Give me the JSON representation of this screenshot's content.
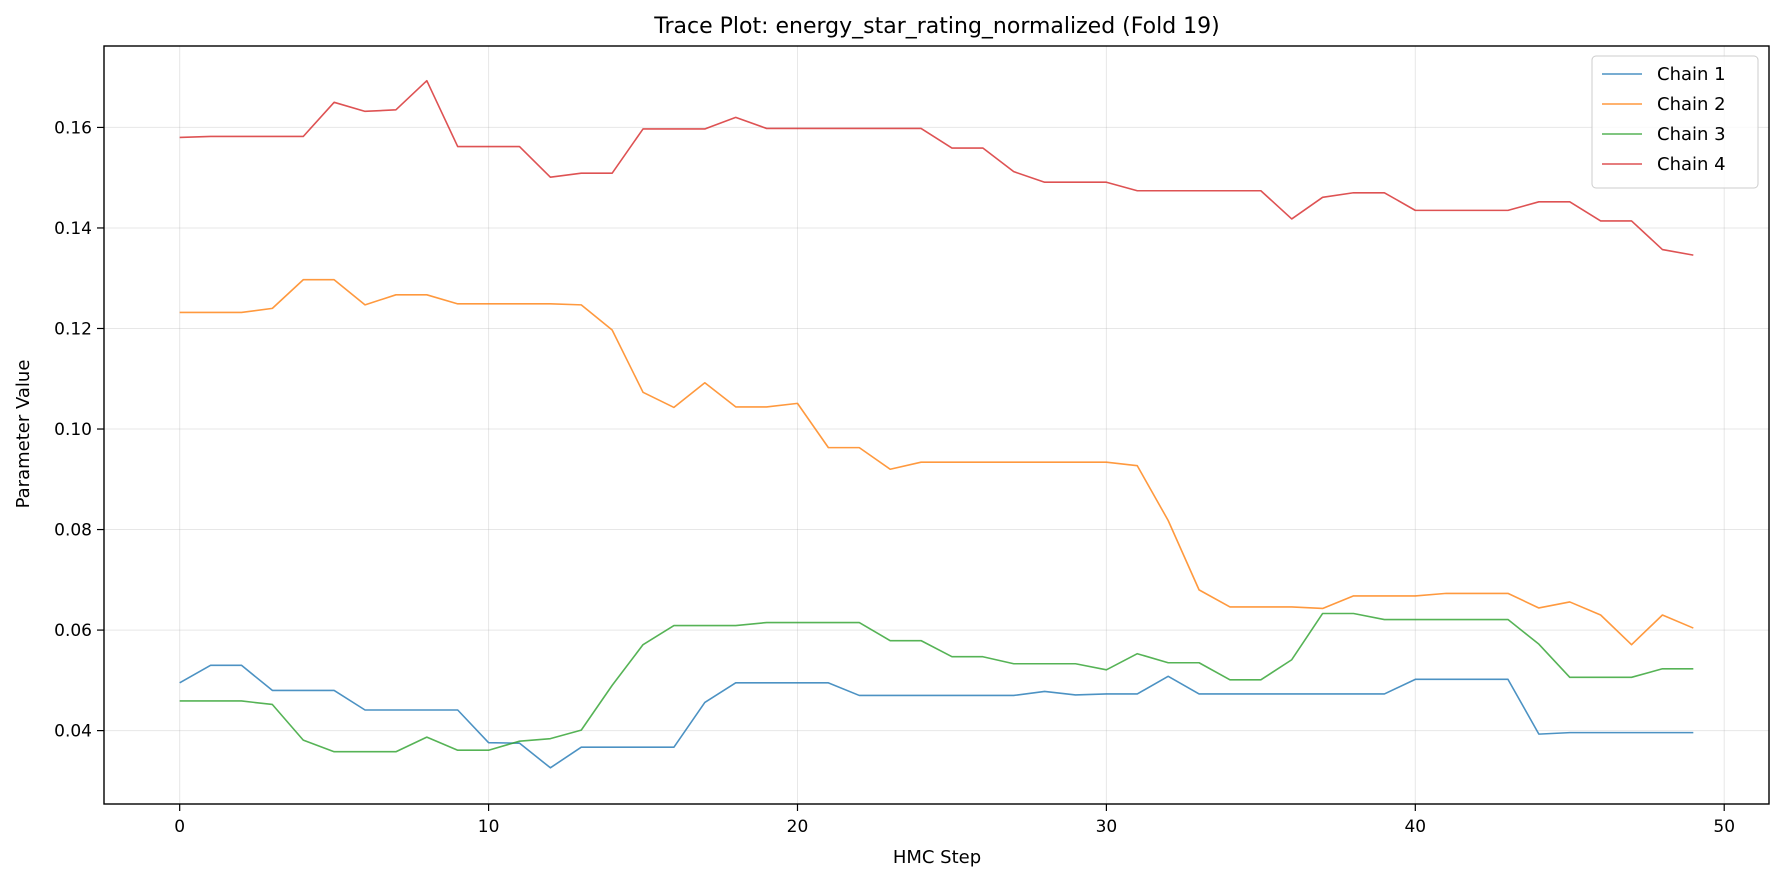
{
  "chart_data": {
    "type": "line",
    "title": "Trace Plot: energy_star_rating_normalized (Fold 19)",
    "xlabel": "HMC Step",
    "ylabel": "Parameter Value",
    "xlim": [
      -2.45,
      51.45
    ],
    "ylim": [
      0.0254,
      0.1762
    ],
    "xticks": [
      0,
      10,
      20,
      30,
      40,
      50
    ],
    "yticks": [
      0.04,
      0.06,
      0.08,
      0.1,
      0.12,
      0.14,
      0.16
    ],
    "xtick_labels": [
      "0",
      "10",
      "20",
      "30",
      "40",
      "50"
    ],
    "ytick_labels": [
      "0.04",
      "0.06",
      "0.08",
      "0.10",
      "0.12",
      "0.14",
      "0.16"
    ],
    "grid": true,
    "legend_position": "top-right",
    "x": [
      0,
      1,
      2,
      3,
      4,
      5,
      6,
      7,
      8,
      9,
      10,
      11,
      12,
      13,
      14,
      15,
      16,
      17,
      18,
      19,
      20,
      21,
      22,
      23,
      24,
      25,
      26,
      27,
      28,
      29,
      30,
      31,
      32,
      33,
      34,
      35,
      36,
      37,
      38,
      39,
      40,
      41,
      42,
      43,
      44,
      45,
      46,
      47,
      48,
      49
    ],
    "series": [
      {
        "name": "Chain 1",
        "color": "#1f77b4",
        "values": [
          0.0495,
          0.053,
          0.053,
          0.048,
          0.048,
          0.048,
          0.0441,
          0.0441,
          0.0441,
          0.0441,
          0.0376,
          0.0375,
          0.0326,
          0.0367,
          0.0367,
          0.0367,
          0.0367,
          0.0456,
          0.0495,
          0.0495,
          0.0495,
          0.0495,
          0.047,
          0.047,
          0.047,
          0.047,
          0.047,
          0.047,
          0.0478,
          0.0471,
          0.0473,
          0.0473,
          0.0508,
          0.0473,
          0.0473,
          0.0473,
          0.0473,
          0.0473,
          0.0473,
          0.0473,
          0.0502,
          0.0502,
          0.0502,
          0.0502,
          0.0393,
          0.0396,
          0.0396,
          0.0396,
          0.0396,
          0.0396
        ]
      },
      {
        "name": "Chain 2",
        "color": "#ff7f0e",
        "values": [
          0.1232,
          0.1232,
          0.1232,
          0.124,
          0.1297,
          0.1297,
          0.1247,
          0.1267,
          0.1267,
          0.1249,
          0.1249,
          0.1249,
          0.1249,
          0.1247,
          0.1197,
          0.1073,
          0.1043,
          0.1092,
          0.1044,
          0.1044,
          0.1051,
          0.0963,
          0.0963,
          0.092,
          0.0934,
          0.0934,
          0.0934,
          0.0934,
          0.0934,
          0.0934,
          0.0934,
          0.0927,
          0.0818,
          0.068,
          0.0646,
          0.0646,
          0.0646,
          0.0643,
          0.0668,
          0.0668,
          0.0668,
          0.0673,
          0.0673,
          0.0673,
          0.0644,
          0.0656,
          0.063,
          0.0571,
          0.063,
          0.0604
        ]
      },
      {
        "name": "Chain 3",
        "color": "#2ca02c",
        "values": [
          0.0459,
          0.0459,
          0.0459,
          0.0452,
          0.0381,
          0.0358,
          0.0358,
          0.0358,
          0.0387,
          0.0361,
          0.0361,
          0.0379,
          0.0384,
          0.0401,
          0.049,
          0.0571,
          0.0609,
          0.0609,
          0.0609,
          0.0615,
          0.0615,
          0.0615,
          0.0615,
          0.0579,
          0.0579,
          0.0547,
          0.0547,
          0.0533,
          0.0533,
          0.0533,
          0.0521,
          0.0553,
          0.0535,
          0.0535,
          0.0501,
          0.0501,
          0.0541,
          0.0633,
          0.0633,
          0.0621,
          0.0621,
          0.0621,
          0.0621,
          0.0621,
          0.0572,
          0.0506,
          0.0506,
          0.0506,
          0.0523,
          0.0523
        ]
      },
      {
        "name": "Chain 4",
        "color": "#d62728",
        "values": [
          0.158,
          0.1582,
          0.1582,
          0.1582,
          0.1582,
          0.165,
          0.1632,
          0.1635,
          0.1693,
          0.1562,
          0.1562,
          0.1562,
          0.1501,
          0.1509,
          0.1509,
          0.1597,
          0.1597,
          0.1597,
          0.162,
          0.1598,
          0.1598,
          0.1598,
          0.1598,
          0.1598,
          0.1598,
          0.1559,
          0.1559,
          0.1512,
          0.1491,
          0.1491,
          0.1491,
          0.1474,
          0.1474,
          0.1474,
          0.1474,
          0.1474,
          0.1418,
          0.1461,
          0.147,
          0.147,
          0.1435,
          0.1435,
          0.1435,
          0.1435,
          0.1452,
          0.1452,
          0.1414,
          0.1414,
          0.1357,
          0.1346
        ]
      }
    ]
  }
}
